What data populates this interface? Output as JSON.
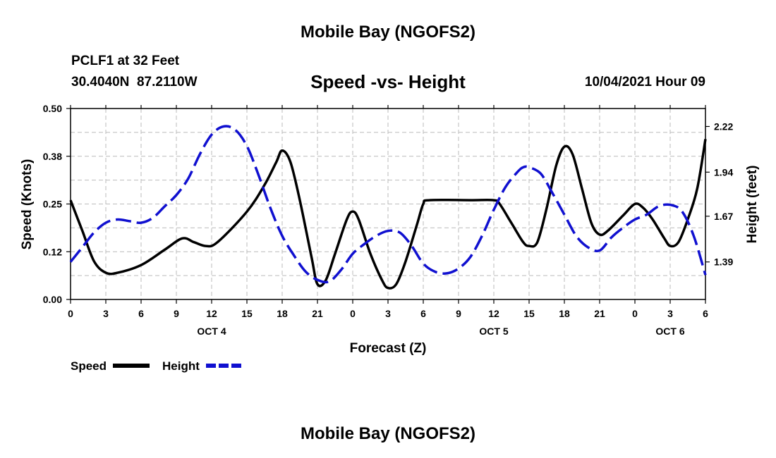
{
  "header": {
    "title": "Mobile Bay (NGOFS2)",
    "station": "PCLF1 at 32 Feet",
    "coords": "30.4040N  87.2110W",
    "subtitle": "Speed -vs- Height",
    "datetime": "10/04/2021 Hour 09"
  },
  "footer": {
    "title": "Mobile Bay (NGOFS2)"
  },
  "legend": {
    "speed_label": "Speed",
    "height_label": "Height"
  },
  "colors": {
    "speed": "#000000",
    "height": "#1010d0",
    "grid": "#bbbbbb"
  },
  "chart_data": {
    "type": "line",
    "xlabel": "Forecast (Z)",
    "ylabel_left": "Speed (Knots)",
    "ylabel_right": "Height (feet)",
    "x_ticks": [
      "0",
      "3",
      "6",
      "9",
      "12",
      "15",
      "18",
      "21",
      "0",
      "3",
      "6",
      "9",
      "12",
      "15",
      "18",
      "21",
      "0",
      "3",
      "6"
    ],
    "date_labels": [
      {
        "label": "OCT 4",
        "hour_offset": 12
      },
      {
        "label": "OCT 5",
        "hour_offset": 36
      },
      {
        "label": "OCT 6",
        "hour_offset": 51
      }
    ],
    "xlim": [
      0,
      54
    ],
    "ylim_left": [
      0,
      0.5
    ],
    "yticks_left": [
      "0.00",
      "0.12",
      "0.25",
      "0.38",
      "0.50"
    ],
    "ylim_right": [
      1.16,
      2.33
    ],
    "yticks_right": [
      "1.39",
      "1.67",
      "1.94",
      "2.22"
    ],
    "series": [
      {
        "name": "Speed",
        "axis": "left",
        "style": "solid",
        "points": [
          [
            0,
            0.26
          ],
          [
            1,
            0.18
          ],
          [
            2,
            0.1
          ],
          [
            3,
            0.07
          ],
          [
            4,
            0.07
          ],
          [
            6,
            0.09
          ],
          [
            8,
            0.13
          ],
          [
            9.5,
            0.16
          ],
          [
            10.5,
            0.15
          ],
          [
            11.5,
            0.14
          ],
          [
            12.5,
            0.15
          ],
          [
            15,
            0.23
          ],
          [
            16.5,
            0.3
          ],
          [
            17.5,
            0.36
          ],
          [
            18,
            0.39
          ],
          [
            18.7,
            0.36
          ],
          [
            19.5,
            0.26
          ],
          [
            20.5,
            0.11
          ],
          [
            21,
            0.04
          ],
          [
            21.7,
            0.05
          ],
          [
            22.5,
            0.12
          ],
          [
            23.5,
            0.21
          ],
          [
            24,
            0.23
          ],
          [
            24.5,
            0.21
          ],
          [
            25.5,
            0.12
          ],
          [
            26.5,
            0.05
          ],
          [
            27,
            0.03
          ],
          [
            27.7,
            0.04
          ],
          [
            28.5,
            0.1
          ],
          [
            29.5,
            0.2
          ],
          [
            30,
            0.25
          ],
          [
            30.5,
            0.26
          ],
          [
            34,
            0.26
          ],
          [
            36,
            0.26
          ],
          [
            36.5,
            0.25
          ],
          [
            37.5,
            0.2
          ],
          [
            38.5,
            0.15
          ],
          [
            39,
            0.14
          ],
          [
            39.7,
            0.15
          ],
          [
            40.5,
            0.24
          ],
          [
            41.3,
            0.35
          ],
          [
            42,
            0.4
          ],
          [
            42.7,
            0.38
          ],
          [
            43.5,
            0.29
          ],
          [
            44.3,
            0.2
          ],
          [
            45,
            0.17
          ],
          [
            45.7,
            0.18
          ],
          [
            47,
            0.22
          ],
          [
            48,
            0.25
          ],
          [
            48.7,
            0.24
          ],
          [
            49.5,
            0.21
          ],
          [
            50.5,
            0.16
          ],
          [
            51,
            0.14
          ],
          [
            51.7,
            0.15
          ],
          [
            52.5,
            0.21
          ],
          [
            53.3,
            0.29
          ],
          [
            54,
            0.42
          ]
        ]
      },
      {
        "name": "Height",
        "axis": "right",
        "style": "dashed",
        "points": [
          [
            0,
            1.39
          ],
          [
            1,
            1.48
          ],
          [
            2,
            1.57
          ],
          [
            3,
            1.63
          ],
          [
            4,
            1.65
          ],
          [
            5,
            1.64
          ],
          [
            6,
            1.63
          ],
          [
            7,
            1.66
          ],
          [
            8,
            1.73
          ],
          [
            9,
            1.8
          ],
          [
            10,
            1.9
          ],
          [
            11,
            2.05
          ],
          [
            12,
            2.17
          ],
          [
            13,
            2.22
          ],
          [
            14,
            2.2
          ],
          [
            15,
            2.1
          ],
          [
            16,
            1.92
          ],
          [
            17,
            1.72
          ],
          [
            18,
            1.55
          ],
          [
            19,
            1.43
          ],
          [
            20,
            1.33
          ],
          [
            21,
            1.28
          ],
          [
            22,
            1.27
          ],
          [
            23,
            1.34
          ],
          [
            24,
            1.44
          ],
          [
            25,
            1.5
          ],
          [
            26,
            1.55
          ],
          [
            27,
            1.58
          ],
          [
            28,
            1.57
          ],
          [
            29,
            1.49
          ],
          [
            30,
            1.38
          ],
          [
            31,
            1.33
          ],
          [
            32,
            1.32
          ],
          [
            33,
            1.35
          ],
          [
            34,
            1.42
          ],
          [
            35,
            1.55
          ],
          [
            36,
            1.71
          ],
          [
            37,
            1.85
          ],
          [
            38,
            1.94
          ],
          [
            38.5,
            1.97
          ],
          [
            39,
            1.97
          ],
          [
            40,
            1.93
          ],
          [
            41,
            1.81
          ],
          [
            42,
            1.68
          ],
          [
            43,
            1.55
          ],
          [
            44,
            1.48
          ],
          [
            45,
            1.46
          ],
          [
            46,
            1.54
          ],
          [
            47,
            1.6
          ],
          [
            48,
            1.65
          ],
          [
            49,
            1.68
          ],
          [
            50,
            1.73
          ],
          [
            51,
            1.74
          ],
          [
            52,
            1.7
          ],
          [
            53,
            1.55
          ],
          [
            54,
            1.31
          ]
        ]
      }
    ]
  }
}
